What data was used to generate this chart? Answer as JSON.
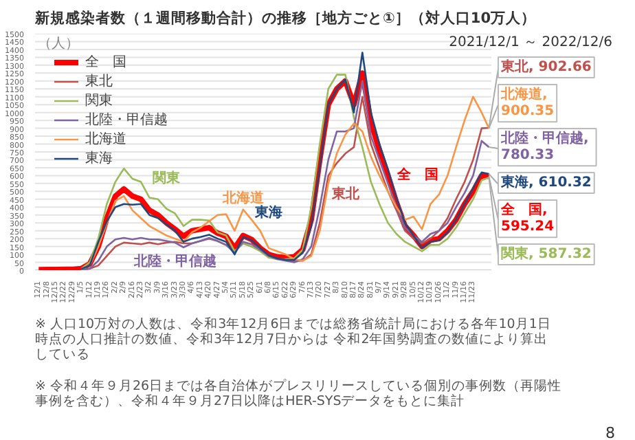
{
  "chart_data": {
    "type": "line",
    "title": "新規感染者数（１週間移動合計）の推移［地方ごと①］（対人口10万人）",
    "subtitle": "2021/12/1 ～ 2022/12/6",
    "ylabel": "（人）",
    "x": [
      "2021-12-01",
      "2021-12-08",
      "2021-12-15",
      "2021-12-22",
      "2021-12-29",
      "2022-01-05",
      "2022-01-12",
      "2022-01-19",
      "2022-01-26",
      "2022-02-02",
      "2022-02-09",
      "2022-02-16",
      "2022-02-23",
      "2022-03-02",
      "2022-03-09",
      "2022-03-16",
      "2022-03-23",
      "2022-03-30",
      "2022-04-06",
      "2022-04-13",
      "2022-04-20",
      "2022-04-27",
      "2022-05-04",
      "2022-05-11",
      "2022-05-18",
      "2022-05-25",
      "2022-06-01",
      "2022-06-08",
      "2022-06-15",
      "2022-06-22",
      "2022-06-29",
      "2022-07-06",
      "2022-07-13",
      "2022-07-20",
      "2022-07-27",
      "2022-08-03",
      "2022-08-10",
      "2022-08-17",
      "2022-08-24",
      "2022-08-31",
      "2022-09-07",
      "2022-09-14",
      "2022-09-21",
      "2022-09-28",
      "2022-10-05",
      "2022-10-12",
      "2022-10-19",
      "2022-10-26",
      "2022-11-02",
      "2022-11-09",
      "2022-11-16",
      "2022-11-23",
      "2022-11-30",
      "2022-12-06"
    ],
    "series": [
      {
        "name": "全　国",
        "color": "#ff0000",
        "values": [
          3,
          4,
          4,
          5,
          5,
          10,
          40,
          150,
          330,
          470,
          515,
          470,
          450,
          380,
          350,
          300,
          260,
          215,
          250,
          260,
          270,
          235,
          215,
          140,
          220,
          195,
          140,
          100,
          85,
          80,
          85,
          130,
          320,
          700,
          1050,
          1150,
          1200,
          1050,
          1250,
          940,
          760,
          600,
          430,
          280,
          220,
          150,
          190,
          200,
          250,
          320,
          420,
          500,
          600,
          595.24
        ]
      },
      {
        "name": "東北",
        "color": "#c0504d",
        "values": [
          null,
          null,
          null,
          null,
          null,
          3,
          10,
          30,
          90,
          150,
          175,
          170,
          165,
          175,
          165,
          175,
          180,
          170,
          170,
          185,
          200,
          185,
          160,
          120,
          170,
          150,
          130,
          95,
          75,
          65,
          60,
          60,
          100,
          300,
          600,
          680,
          740,
          780,
          1100,
          800,
          650,
          500,
          380,
          250,
          200,
          170,
          200,
          250,
          330,
          450,
          560,
          700,
          900,
          902.66
        ]
      },
      {
        "name": "関東",
        "color": "#9bbb59",
        "values": [
          null,
          null,
          null,
          null,
          null,
          10,
          50,
          200,
          420,
          560,
          645,
          580,
          560,
          460,
          450,
          390,
          360,
          280,
          320,
          320,
          315,
          240,
          220,
          120,
          170,
          150,
          120,
          80,
          70,
          70,
          75,
          130,
          400,
          800,
          1150,
          1240,
          1240,
          970,
          780,
          560,
          420,
          300,
          230,
          180,
          150,
          120,
          160,
          160,
          200,
          270,
          360,
          450,
          570,
          587.32
        ]
      },
      {
        "name": "北陸・甲信越",
        "color": "#8064a2",
        "values": [
          null,
          null,
          null,
          null,
          null,
          4,
          10,
          60,
          150,
          195,
          205,
          195,
          205,
          195,
          195,
          185,
          175,
          145,
          170,
          185,
          205,
          185,
          160,
          110,
          180,
          165,
          130,
          90,
          70,
          60,
          50,
          70,
          150,
          400,
          700,
          880,
          880,
          900,
          1200,
          850,
          700,
          550,
          400,
          270,
          220,
          180,
          230,
          250,
          300,
          400,
          490,
          600,
          820,
          780.33
        ]
      },
      {
        "name": "北海道",
        "color": "#f79646",
        "values": [
          null,
          null,
          null,
          null,
          null,
          8,
          30,
          150,
          300,
          440,
          470,
          380,
          330,
          280,
          250,
          220,
          200,
          180,
          240,
          270,
          310,
          350,
          355,
          250,
          385,
          320,
          250,
          140,
          120,
          100,
          70,
          60,
          90,
          250,
          550,
          740,
          860,
          930,
          880,
          720,
          600,
          500,
          400,
          320,
          340,
          260,
          420,
          480,
          600,
          780,
          950,
          1100,
          1000,
          900.35
        ]
      },
      {
        "name": "東海",
        "color": "#1f497d",
        "values": [
          null,
          null,
          null,
          null,
          null,
          8,
          30,
          180,
          310,
          400,
          420,
          415,
          420,
          350,
          330,
          290,
          250,
          180,
          200,
          210,
          225,
          200,
          180,
          100,
          210,
          190,
          140,
          95,
          75,
          65,
          65,
          110,
          280,
          650,
          1050,
          1150,
          1210,
          1000,
          1380,
          1000,
          800,
          640,
          460,
          300,
          220,
          140,
          180,
          190,
          240,
          320,
          420,
          520,
          620,
          610.32
        ]
      }
    ],
    "xlim": [
      "2021-11-28",
      "2022-12-08"
    ],
    "xticks": [
      {
        "value": "2021-12-01",
        "label": "12/1"
      },
      {
        "value": "2021-12-08",
        "label": "12/8"
      },
      {
        "value": "2021-12-15",
        "label": "12/15"
      },
      {
        "value": "2021-12-22",
        "label": "12/22"
      },
      {
        "value": "2021-12-29",
        "label": "12/29"
      },
      {
        "value": "2022-01-05",
        "label": "1/5"
      },
      {
        "value": "2022-01-12",
        "label": "1/12"
      },
      {
        "value": "2022-01-19",
        "label": "1/19"
      },
      {
        "value": "2022-01-26",
        "label": "1/26"
      },
      {
        "value": "2022-02-02",
        "label": "2/2"
      },
      {
        "value": "2022-02-09",
        "label": "2/9"
      },
      {
        "value": "2022-02-16",
        "label": "2/16"
      },
      {
        "value": "2022-02-23",
        "label": "2/23"
      },
      {
        "value": "2022-03-02",
        "label": "3/2"
      },
      {
        "value": "2022-03-09",
        "label": "3/9"
      },
      {
        "value": "2022-03-16",
        "label": "3/16"
      },
      {
        "value": "2022-03-23",
        "label": "3/23"
      },
      {
        "value": "2022-03-30",
        "label": "3/30"
      },
      {
        "value": "2022-04-06",
        "label": "4/6"
      },
      {
        "value": "2022-04-13",
        "label": "4/13"
      },
      {
        "value": "2022-04-20",
        "label": "4/20"
      },
      {
        "value": "2022-04-27",
        "label": "4/27"
      },
      {
        "value": "2022-05-04",
        "label": "5/4"
      },
      {
        "value": "2022-05-11",
        "label": "5/11"
      },
      {
        "value": "2022-05-18",
        "label": "5/18"
      },
      {
        "value": "2022-05-25",
        "label": "5/25"
      },
      {
        "value": "2022-06-01",
        "label": "6/1"
      },
      {
        "value": "2022-06-08",
        "label": "6/8"
      },
      {
        "value": "2022-06-15",
        "label": "6/15"
      },
      {
        "value": "2022-06-22",
        "label": "6/22"
      },
      {
        "value": "2022-06-29",
        "label": "6/29"
      },
      {
        "value": "2022-07-06",
        "label": "7/6"
      },
      {
        "value": "2022-07-13",
        "label": "7/13"
      },
      {
        "value": "2022-07-20",
        "label": "7/20"
      },
      {
        "value": "2022-07-27",
        "label": "7/27"
      },
      {
        "value": "2022-08-03",
        "label": "8/3"
      },
      {
        "value": "2022-08-10",
        "label": "8/10"
      },
      {
        "value": "2022-08-17",
        "label": "8/17"
      },
      {
        "value": "2022-08-24",
        "label": "8/24"
      },
      {
        "value": "2022-08-31",
        "label": "8/31"
      },
      {
        "value": "2022-09-07",
        "label": "9/7"
      },
      {
        "value": "2022-09-14",
        "label": "9/14"
      },
      {
        "value": "2022-09-21",
        "label": "9/21"
      },
      {
        "value": "2022-09-28",
        "label": "9/28"
      },
      {
        "value": "2022-10-05",
        "label": "10/5"
      },
      {
        "value": "2022-10-12",
        "label": "10/12"
      },
      {
        "value": "2022-10-19",
        "label": "10/19"
      },
      {
        "value": "2022-10-26",
        "label": "10/26"
      },
      {
        "value": "2022-11-02",
        "label": "11/2"
      },
      {
        "value": "2022-11-09",
        "label": "11/9"
      },
      {
        "value": "2022-11-16",
        "label": "11/16"
      },
      {
        "value": "2022-11-23",
        "label": "11/23"
      }
    ],
    "ylim": [
      0,
      1500
    ],
    "yticks": [
      0,
      50,
      100,
      150,
      200,
      250,
      300,
      350,
      400,
      450,
      500,
      550,
      600,
      650,
      700,
      750,
      800,
      850,
      900,
      950,
      1000,
      1050,
      1100,
      1150,
      1200,
      1250,
      1300,
      1350,
      1400,
      1450,
      1500
    ],
    "grid": "y",
    "legend": "top left",
    "annotations": [
      {
        "text": "関東",
        "x": "2022-03-16",
        "y": 390
      },
      {
        "text": "北海道",
        "x": "2022-05-18",
        "y": 385
      },
      {
        "text": "北陸・甲信越",
        "x": "2022-03-23",
        "y": 175
      },
      {
        "text": "東海",
        "x": "2022-05-11",
        "y": 100
      },
      {
        "text": "東北",
        "x": "2022-08-10",
        "y": 740
      },
      {
        "text": "全　国",
        "x": "2022-09-14",
        "y": 600
      },
      {
        "text": "東北, 902.66",
        "x": "2022-12-06",
        "y": 902.66
      },
      {
        "text": "北海道, 900.35",
        "x": "2022-12-06",
        "y": 900.35
      },
      {
        "text": "北陸・甲信越, 780.33",
        "x": "2022-12-06",
        "y": 780.33
      },
      {
        "text": "東海, 610.32",
        "x": "2022-12-06",
        "y": 610.32
      },
      {
        "text": "全　国, 595.24",
        "x": "2022-12-06",
        "y": 595.24
      },
      {
        "text": "関東, 587.32",
        "x": "2022-12-06",
        "y": 587.32
      },
      "※ 人口10万対の人数は、令和3年12月6日までは総務省統計局における各年10月1日時点の人口推計の数値、令和3年12月7日からは 令和2年国勢調査の数値により算出している",
      "※ 令和４年９月26日までは各自治体がプレスリリースしている個別の事例数（再陽性事例を含む）、令和４年９月27日以降はHER-SYSデータをもとに集計",
      "8"
    ]
  }
}
